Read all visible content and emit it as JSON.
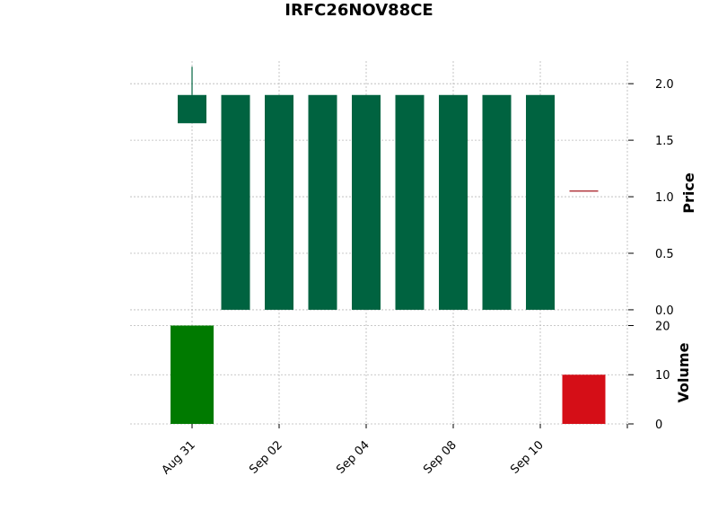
{
  "chart_data": {
    "type": "candlestick",
    "title": "IRFC26NOV88CE",
    "price_panel": {
      "ylabel": "Price",
      "ylim": [
        -0.08,
        2.2
      ],
      "yticks": [
        0.0,
        0.5,
        1.0,
        1.5,
        2.0
      ],
      "ytick_labels": [
        "0.0",
        "0.5",
        "1.0",
        "1.5",
        "2.0"
      ],
      "axis_side": "right",
      "grid": true
    },
    "volume_panel": {
      "ylabel": "Volume",
      "ylim": [
        0,
        21
      ],
      "yticks": [
        0,
        10,
        20
      ],
      "ytick_labels": [
        "0",
        "10",
        "20"
      ],
      "axis_side": "right",
      "grid": true
    },
    "xticks": [
      {
        "index": 0,
        "label": "Aug 31"
      },
      {
        "index": 2,
        "label": "Sep 02"
      },
      {
        "index": 4,
        "label": "Sep 04"
      },
      {
        "index": 6,
        "label": "Sep 08"
      },
      {
        "index": 8,
        "label": "Sep 10"
      },
      {
        "index": 10,
        "label": ""
      }
    ],
    "candles": [
      {
        "index": 0,
        "open": 1.65,
        "high": 2.15,
        "low": 1.65,
        "close": 1.9,
        "volume": 20,
        "color": "#006340"
      },
      {
        "index": 1,
        "open": 0.0,
        "high": 1.9,
        "low": 0.0,
        "close": 1.9,
        "volume": 0,
        "color": "#006340"
      },
      {
        "index": 2,
        "open": 0.0,
        "high": 1.9,
        "low": 0.0,
        "close": 1.9,
        "volume": 0,
        "color": "#006340"
      },
      {
        "index": 3,
        "open": 0.0,
        "high": 1.9,
        "low": 0.0,
        "close": 1.9,
        "volume": 0,
        "color": "#006340"
      },
      {
        "index": 4,
        "open": 0.0,
        "high": 1.9,
        "low": 0.0,
        "close": 1.9,
        "volume": 0,
        "color": "#006340"
      },
      {
        "index": 5,
        "open": 0.0,
        "high": 1.9,
        "low": 0.0,
        "close": 1.9,
        "volume": 0,
        "color": "#006340"
      },
      {
        "index": 6,
        "open": 0.0,
        "high": 1.9,
        "low": 0.0,
        "close": 1.9,
        "volume": 0,
        "color": "#006340"
      },
      {
        "index": 7,
        "open": 0.0,
        "high": 1.9,
        "low": 0.0,
        "close": 1.9,
        "volume": 0,
        "color": "#006340"
      },
      {
        "index": 8,
        "open": 0.0,
        "high": 1.9,
        "low": 0.0,
        "close": 1.9,
        "volume": 0,
        "color": "#006340"
      },
      {
        "index": 9,
        "open": 1.05,
        "high": 1.05,
        "low": 1.05,
        "close": 1.05,
        "volume": 10,
        "color": "#a5171f"
      }
    ],
    "volume_colors": {
      "up": "#007a00",
      "down": "#d50e17"
    }
  }
}
